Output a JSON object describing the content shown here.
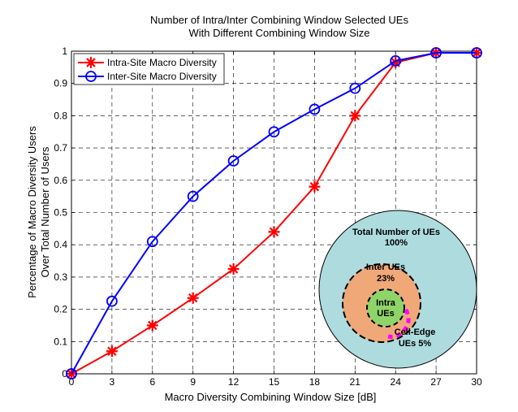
{
  "chart_data": {
    "type": "line",
    "title": "Number of Intra/Inter Combining Window Selected UEs",
    "subtitle": "With Different Combining Window Size",
    "xlabel": "Macro Diversity Combining Window Size [dB]",
    "ylabel_line1": "Percentage of Macro Diversity Users",
    "ylabel_line2": "Over Total Number of Users",
    "x": [
      0,
      3,
      6,
      9,
      12,
      15,
      18,
      21,
      24,
      27,
      30
    ],
    "xlim": [
      0,
      30
    ],
    "ylim": [
      0,
      1
    ],
    "x_ticks": [
      "0",
      "3",
      "6",
      "9",
      "12",
      "15",
      "18",
      "21",
      "24",
      "27",
      "30"
    ],
    "y_ticks": [
      "0",
      "0.1",
      "0.2",
      "0.3",
      "0.4",
      "0.5",
      "0.6",
      "0.7",
      "0.8",
      "0.9",
      "1"
    ],
    "grid": true,
    "legend_position": "top-left",
    "series": [
      {
        "name": "Intra-Site Macro Diversity",
        "color": "#ff0000",
        "marker": "star",
        "values": [
          0.0,
          0.07,
          0.15,
          0.235,
          0.325,
          0.44,
          0.58,
          0.8,
          0.965,
          0.995,
          0.995
        ]
      },
      {
        "name": "Inter-Site Macro Diversity",
        "color": "#0000ff",
        "marker": "circle",
        "values": [
          0.0,
          0.225,
          0.41,
          0.55,
          0.66,
          0.75,
          0.82,
          0.885,
          0.97,
          0.995,
          0.995
        ]
      }
    ],
    "inset": {
      "total_label_1": "Total Number of UEs",
      "total_label_2": "100%",
      "inter_label_1": "Inter UEs",
      "inter_label_2": "23%",
      "intra_label_1": "Intra",
      "intra_label_2": "UEs",
      "edge_label_1": "Cell-Edge",
      "edge_label_2": "UEs 5%",
      "colors": {
        "total": "#aedcde",
        "inter": "#f0a878",
        "intra": "#8fd468",
        "edge": "#ff00ff"
      }
    }
  }
}
